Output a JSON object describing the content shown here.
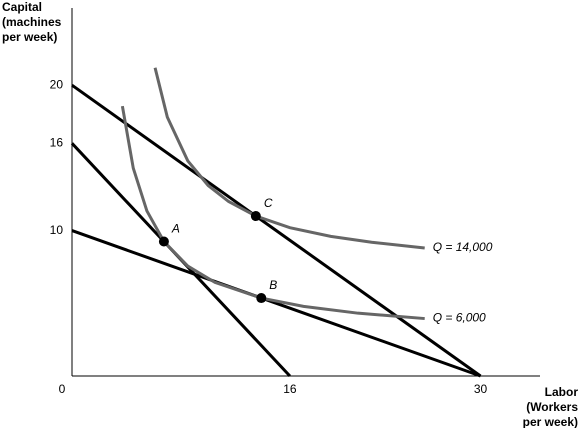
{
  "chart_data": {
    "type": "line",
    "y_label": [
      "Capital",
      "(machines",
      "per week)"
    ],
    "x_label": [
      "Labor",
      "(Workers",
      "per week)"
    ],
    "xlim": [
      0,
      34
    ],
    "ylim": [
      0,
      24
    ],
    "xticks": [
      0,
      16,
      30
    ],
    "yticks": [
      10,
      16,
      20
    ],
    "series": [
      {
        "color": "#000000",
        "x": [
          0,
          16
        ],
        "values": [
          16,
          0
        ]
      },
      {
        "color": "#000000",
        "x": [
          0,
          30
        ],
        "values": [
          20,
          0
        ]
      },
      {
        "color": "#000000",
        "x": [
          0,
          30
        ],
        "values": [
          10,
          0
        ]
      },
      {
        "name": "Q = 14,000",
        "color": "#666666",
        "x": [
          6.1,
          7,
          8.5,
          10,
          11.5,
          13.5,
          16,
          19,
          22,
          25.9
        ],
        "values": [
          21.2,
          17.8,
          14.8,
          13.1,
          12.0,
          11.0,
          10.2,
          9.6,
          9.2,
          8.8
        ]
      },
      {
        "name": "Q = 6,000",
        "color": "#666666",
        "x": [
          3.7,
          4.5,
          5.5,
          6.75,
          8.5,
          10.5,
          13.9,
          17,
          21,
          25.9
        ],
        "values": [
          18.56,
          14.29,
          11.35,
          9.25,
          7.56,
          6.44,
          5.36,
          4.79,
          4.32,
          3.95
        ]
      }
    ],
    "points": [
      {
        "label": "A",
        "x": 6.75,
        "y": 9.25
      },
      {
        "label": "B",
        "x": 13.9,
        "y": 5.36
      },
      {
        "label": "C",
        "x": 13.5,
        "y": 11.0
      }
    ]
  }
}
